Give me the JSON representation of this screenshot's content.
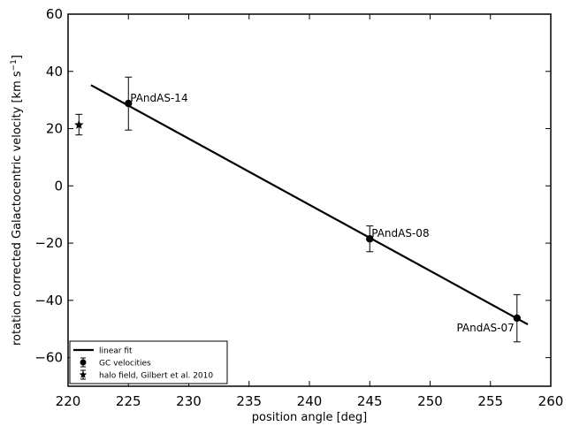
{
  "chart_data": {
    "type": "scatter",
    "title": "",
    "xlabel": "position angle [deg]",
    "ylabel_main": "rotation corrected Galactocentric velocity [km s",
    "ylabel_sup": "−1",
    "ylabel_end": "]",
    "xlim": [
      220,
      260
    ],
    "ylim": [
      -70,
      60
    ],
    "xticks": [
      220,
      225,
      230,
      235,
      240,
      245,
      250,
      255,
      260
    ],
    "yticks": [
      -60,
      -40,
      -20,
      0,
      20,
      40,
      60
    ],
    "xtick_labels": [
      "220",
      "225",
      "230",
      "235",
      "240",
      "245",
      "250",
      "255",
      "260"
    ],
    "ytick_labels": [
      "−60",
      "−40",
      "−20",
      "0",
      "20",
      "40",
      "60"
    ],
    "grid": false,
    "legend_position": "bottom-left",
    "series": [
      {
        "name": "linear fit",
        "kind": "line",
        "color": "#000000",
        "points": [
          {
            "x": 221.9,
            "y": 35.2
          },
          {
            "x": 258.1,
            "y": -48.4
          }
        ]
      },
      {
        "name": "GC velocities",
        "kind": "errorbar",
        "marker": "circle",
        "color": "#000000",
        "points": [
          {
            "x": 225.0,
            "y": 28.8,
            "ylo": 19.5,
            "yhi": 38.0,
            "label": "PAndAS-14"
          },
          {
            "x": 245.0,
            "y": -18.5,
            "ylo": -23.0,
            "yhi": -14.0,
            "label": "PAndAS-08"
          },
          {
            "x": 257.2,
            "y": -46.2,
            "ylo": -54.5,
            "yhi": -38.0,
            "label": "PAndAS-07"
          }
        ]
      },
      {
        "name": "halo field, Gilbert et al. 2010",
        "kind": "errorbar",
        "marker": "star",
        "color": "#000000",
        "points": [
          {
            "x": 220.9,
            "y": 21.3,
            "ylo": 17.8,
            "yhi": 25.0
          }
        ]
      }
    ]
  }
}
